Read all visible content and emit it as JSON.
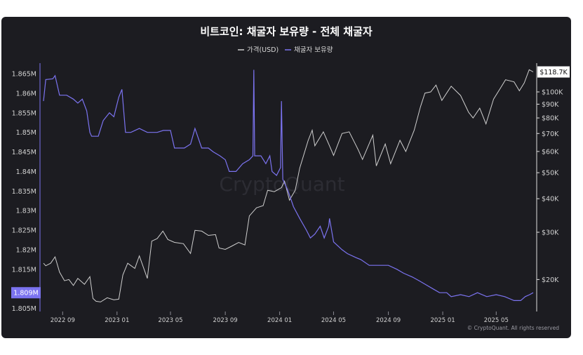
{
  "chart_data": {
    "type": "line",
    "title": "비트코인: 채굴자 보유량 - 전체 채굴자",
    "legend": {
      "position": "top-center",
      "items": [
        {
          "label": "가격(USD)",
          "color": "#cfcfcf"
        },
        {
          "label": "채굴자 보유량",
          "color": "#7b73f0"
        }
      ]
    },
    "watermark": "CryptoQuant",
    "copyright": "© CryptoQuant. All rights reserved",
    "x_ticks": [
      "2022 09",
      "2023 01",
      "2023 05",
      "2023 09",
      "2024 01",
      "2024 05",
      "2024 09",
      "2025 01",
      "2025 05"
    ],
    "x_range": [
      "2022-07-20",
      "2025-07-23"
    ],
    "left_axis": {
      "ticks": [
        "1.865M",
        "1.86M",
        "1.855M",
        "1.85M",
        "1.845M",
        "1.84M",
        "1.835M",
        "1.83M",
        "1.825M",
        "1.82M",
        "1.815M",
        "1.809M",
        "1.805M"
      ],
      "range": [
        1.8042,
        1.8677
      ],
      "last_value_label": "1.809M"
    },
    "right_axis": {
      "scale": "log",
      "ticks": [
        "$100K",
        "$90K",
        "$80K",
        "$70K",
        "$60K",
        "$50K",
        "$40K",
        "$30K",
        "$20K"
      ],
      "range": [
        15200,
        128000
      ],
      "last_value_label": "$118.7K"
    },
    "grid": false,
    "series": [
      {
        "name": "채굴자 보유량",
        "axis": "left",
        "color": "#7b73f0",
        "points": [
          [
            "2022-07-20",
            1.858
          ],
          [
            "2022-07-25",
            1.8635
          ],
          [
            "2022-08-10",
            1.8637
          ],
          [
            "2022-08-15",
            1.8645
          ],
          [
            "2022-08-25",
            1.8595
          ],
          [
            "2022-09-10",
            1.8595
          ],
          [
            "2022-09-25",
            1.8585
          ],
          [
            "2022-10-05",
            1.8575
          ],
          [
            "2022-10-15",
            1.8585
          ],
          [
            "2022-10-25",
            1.8555
          ],
          [
            "2022-11-01",
            1.85
          ],
          [
            "2022-11-05",
            1.849
          ],
          [
            "2022-11-20",
            1.849
          ],
          [
            "2022-12-01",
            1.853
          ],
          [
            "2022-12-15",
            1.855
          ],
          [
            "2022-12-25",
            1.854
          ],
          [
            "2023-01-05",
            1.859
          ],
          [
            "2023-01-12",
            1.861
          ],
          [
            "2023-01-20",
            1.85
          ],
          [
            "2023-02-01",
            1.85
          ],
          [
            "2023-02-20",
            1.851
          ],
          [
            "2023-03-10",
            1.85
          ],
          [
            "2023-04-01",
            1.85
          ],
          [
            "2023-04-15",
            1.8505
          ],
          [
            "2023-05-01",
            1.8505
          ],
          [
            "2023-05-10",
            1.846
          ],
          [
            "2023-06-01",
            1.846
          ],
          [
            "2023-06-15",
            1.847
          ],
          [
            "2023-06-25",
            1.851
          ],
          [
            "2023-07-10",
            1.846
          ],
          [
            "2023-07-25",
            1.846
          ],
          [
            "2023-08-05",
            1.845
          ],
          [
            "2023-08-20",
            1.844
          ],
          [
            "2023-09-01",
            1.843
          ],
          [
            "2023-09-10",
            1.84
          ],
          [
            "2023-09-25",
            1.84
          ],
          [
            "2023-10-10",
            1.842
          ],
          [
            "2023-10-25",
            1.843
          ],
          [
            "2023-11-02",
            1.844
          ],
          [
            "2023-11-04",
            1.866
          ],
          [
            "2023-11-06",
            1.844
          ],
          [
            "2023-11-20",
            1.844
          ],
          [
            "2023-12-01",
            1.842
          ],
          [
            "2023-12-10",
            1.844
          ],
          [
            "2023-12-15",
            1.84
          ],
          [
            "2023-12-25",
            1.839
          ],
          [
            "2024-01-03",
            1.841
          ],
          [
            "2024-01-05",
            1.858
          ],
          [
            "2024-01-08",
            1.838
          ],
          [
            "2024-01-20",
            1.835
          ],
          [
            "2024-02-01",
            1.831
          ],
          [
            "2024-02-15",
            1.828
          ],
          [
            "2024-03-01",
            1.825
          ],
          [
            "2024-03-10",
            1.823
          ],
          [
            "2024-03-20",
            1.824
          ],
          [
            "2024-04-01",
            1.826
          ],
          [
            "2024-04-10",
            1.823
          ],
          [
            "2024-04-20",
            1.826
          ],
          [
            "2024-04-22",
            1.828
          ],
          [
            "2024-05-01",
            1.822
          ],
          [
            "2024-05-20",
            1.82
          ],
          [
            "2024-06-01",
            1.819
          ],
          [
            "2024-06-20",
            1.818
          ],
          [
            "2024-07-01",
            1.8175
          ],
          [
            "2024-07-20",
            1.816
          ],
          [
            "2024-08-01",
            1.816
          ],
          [
            "2024-08-20",
            1.816
          ],
          [
            "2024-09-01",
            1.816
          ],
          [
            "2024-09-20",
            1.815
          ],
          [
            "2024-10-05",
            1.814
          ],
          [
            "2024-10-25",
            1.813
          ],
          [
            "2024-11-10",
            1.812
          ],
          [
            "2024-11-25",
            1.811
          ],
          [
            "2024-12-10",
            1.81
          ],
          [
            "2024-12-25",
            1.809
          ],
          [
            "2025-01-10",
            1.809
          ],
          [
            "2025-01-20",
            1.808
          ],
          [
            "2025-02-10",
            1.8085
          ],
          [
            "2025-03-01",
            1.808
          ],
          [
            "2025-03-20",
            1.809
          ],
          [
            "2025-04-10",
            1.808
          ],
          [
            "2025-05-01",
            1.8085
          ],
          [
            "2025-05-20",
            1.808
          ],
          [
            "2025-06-10",
            1.807
          ],
          [
            "2025-06-25",
            1.807
          ],
          [
            "2025-07-05",
            1.808
          ],
          [
            "2025-07-15",
            1.8085
          ],
          [
            "2025-07-23",
            1.809
          ]
        ]
      },
      {
        "name": "가격(USD)",
        "axis": "right",
        "color": "#cfcfcf",
        "points": [
          [
            "2022-07-20",
            23000
          ],
          [
            "2022-07-25",
            22500
          ],
          [
            "2022-08-05",
            23000
          ],
          [
            "2022-08-15",
            24300
          ],
          [
            "2022-08-25",
            21300
          ],
          [
            "2022-09-05",
            19800
          ],
          [
            "2022-09-15",
            20000
          ],
          [
            "2022-09-25",
            19000
          ],
          [
            "2022-10-05",
            20200
          ],
          [
            "2022-10-20",
            19200
          ],
          [
            "2022-11-01",
            20500
          ],
          [
            "2022-11-08",
            17000
          ],
          [
            "2022-11-15",
            16600
          ],
          [
            "2022-11-25",
            16500
          ],
          [
            "2022-12-10",
            17100
          ],
          [
            "2022-12-25",
            16800
          ],
          [
            "2023-01-05",
            16900
          ],
          [
            "2023-01-14",
            20800
          ],
          [
            "2023-01-25",
            23000
          ],
          [
            "2023-02-10",
            22000
          ],
          [
            "2023-02-20",
            24500
          ],
          [
            "2023-03-10",
            20200
          ],
          [
            "2023-03-20",
            27800
          ],
          [
            "2023-04-01",
            28400
          ],
          [
            "2023-04-14",
            30300
          ],
          [
            "2023-04-25",
            28200
          ],
          [
            "2023-05-10",
            27500
          ],
          [
            "2023-05-30",
            27200
          ],
          [
            "2023-06-15",
            25000
          ],
          [
            "2023-06-25",
            30500
          ],
          [
            "2023-07-10",
            30300
          ],
          [
            "2023-07-25",
            29200
          ],
          [
            "2023-08-10",
            29400
          ],
          [
            "2023-08-18",
            26200
          ],
          [
            "2023-09-01",
            25900
          ],
          [
            "2023-09-15",
            26600
          ],
          [
            "2023-10-01",
            27500
          ],
          [
            "2023-10-15",
            26900
          ],
          [
            "2023-10-25",
            34500
          ],
          [
            "2023-11-10",
            37000
          ],
          [
            "2023-11-25",
            37700
          ],
          [
            "2023-12-05",
            43000
          ],
          [
            "2023-12-20",
            42500
          ],
          [
            "2024-01-05",
            44000
          ],
          [
            "2024-01-12",
            46500
          ],
          [
            "2024-01-23",
            39500
          ],
          [
            "2024-02-05",
            43000
          ],
          [
            "2024-02-15",
            52000
          ],
          [
            "2024-03-05",
            66000
          ],
          [
            "2024-03-14",
            72000
          ],
          [
            "2024-03-20",
            63000
          ],
          [
            "2024-04-08",
            71000
          ],
          [
            "2024-04-20",
            64000
          ],
          [
            "2024-05-01",
            58000
          ],
          [
            "2024-05-20",
            70000
          ],
          [
            "2024-06-05",
            71000
          ],
          [
            "2024-06-25",
            61000
          ],
          [
            "2024-07-05",
            56000
          ],
          [
            "2024-07-28",
            69000
          ],
          [
            "2024-08-05",
            53000
          ],
          [
            "2024-08-25",
            64000
          ],
          [
            "2024-09-06",
            54000
          ],
          [
            "2024-09-27",
            66000
          ],
          [
            "2024-10-10",
            60000
          ],
          [
            "2024-10-29",
            72000
          ],
          [
            "2024-11-12",
            88000
          ],
          [
            "2024-11-22",
            99000
          ],
          [
            "2024-12-05",
            100000
          ],
          [
            "2024-12-17",
            106000
          ],
          [
            "2024-12-30",
            93000
          ],
          [
            "2025-01-20",
            105000
          ],
          [
            "2025-02-10",
            97000
          ],
          [
            "2025-02-28",
            84000
          ],
          [
            "2025-03-10",
            80000
          ],
          [
            "2025-03-25",
            87000
          ],
          [
            "2025-04-08",
            76000
          ],
          [
            "2025-04-25",
            94000
          ],
          [
            "2025-05-10",
            103000
          ],
          [
            "2025-05-22",
            111000
          ],
          [
            "2025-06-10",
            109000
          ],
          [
            "2025-06-22",
            101000
          ],
          [
            "2025-07-03",
            108000
          ],
          [
            "2025-07-14",
            121000
          ],
          [
            "2025-07-23",
            118700
          ]
        ]
      }
    ]
  }
}
